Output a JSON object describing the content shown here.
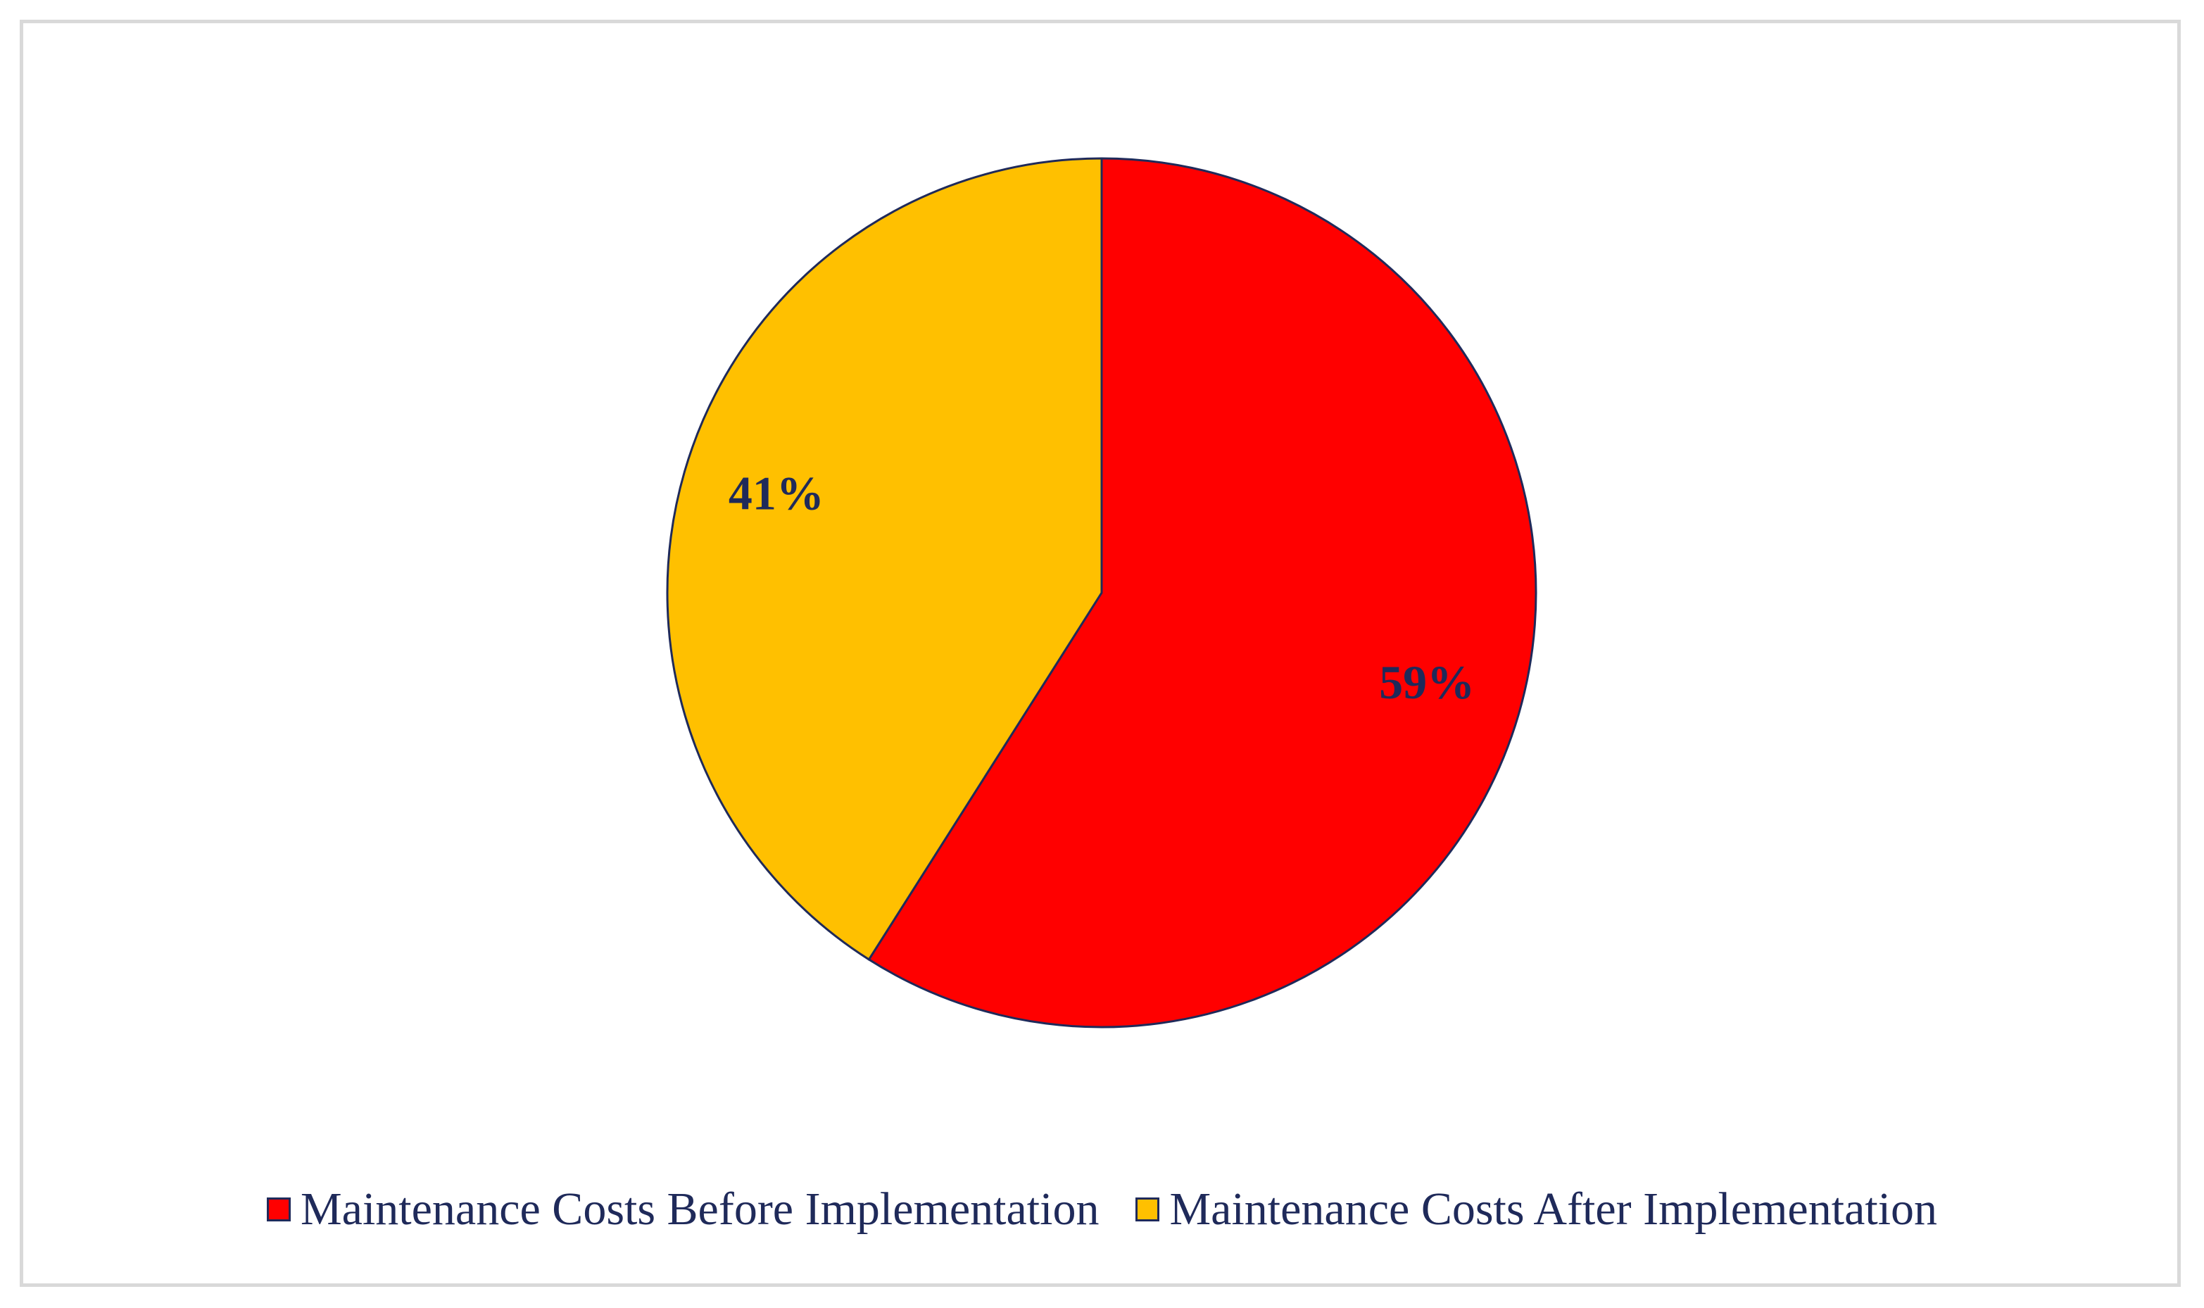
{
  "chart_data": {
    "type": "pie",
    "title": "",
    "slices": [
      {
        "label": "Maintenance Costs Before Implementation",
        "value": 59,
        "display": "59%",
        "color": "#ff0000"
      },
      {
        "label": "Maintenance Costs After Implementation",
        "value": 41,
        "display": "41%",
        "color": "#ffc000"
      }
    ],
    "start_angle": "12 o'clock",
    "direction": "clockwise",
    "legend_position": "bottom",
    "slice_border_color": "#1f2a5a"
  },
  "legend": {
    "items": [
      {
        "label": "Maintenance Costs Before Implementation",
        "color": "#ff0000"
      },
      {
        "label": "Maintenance Costs After Implementation",
        "color": "#ffc000"
      }
    ]
  }
}
